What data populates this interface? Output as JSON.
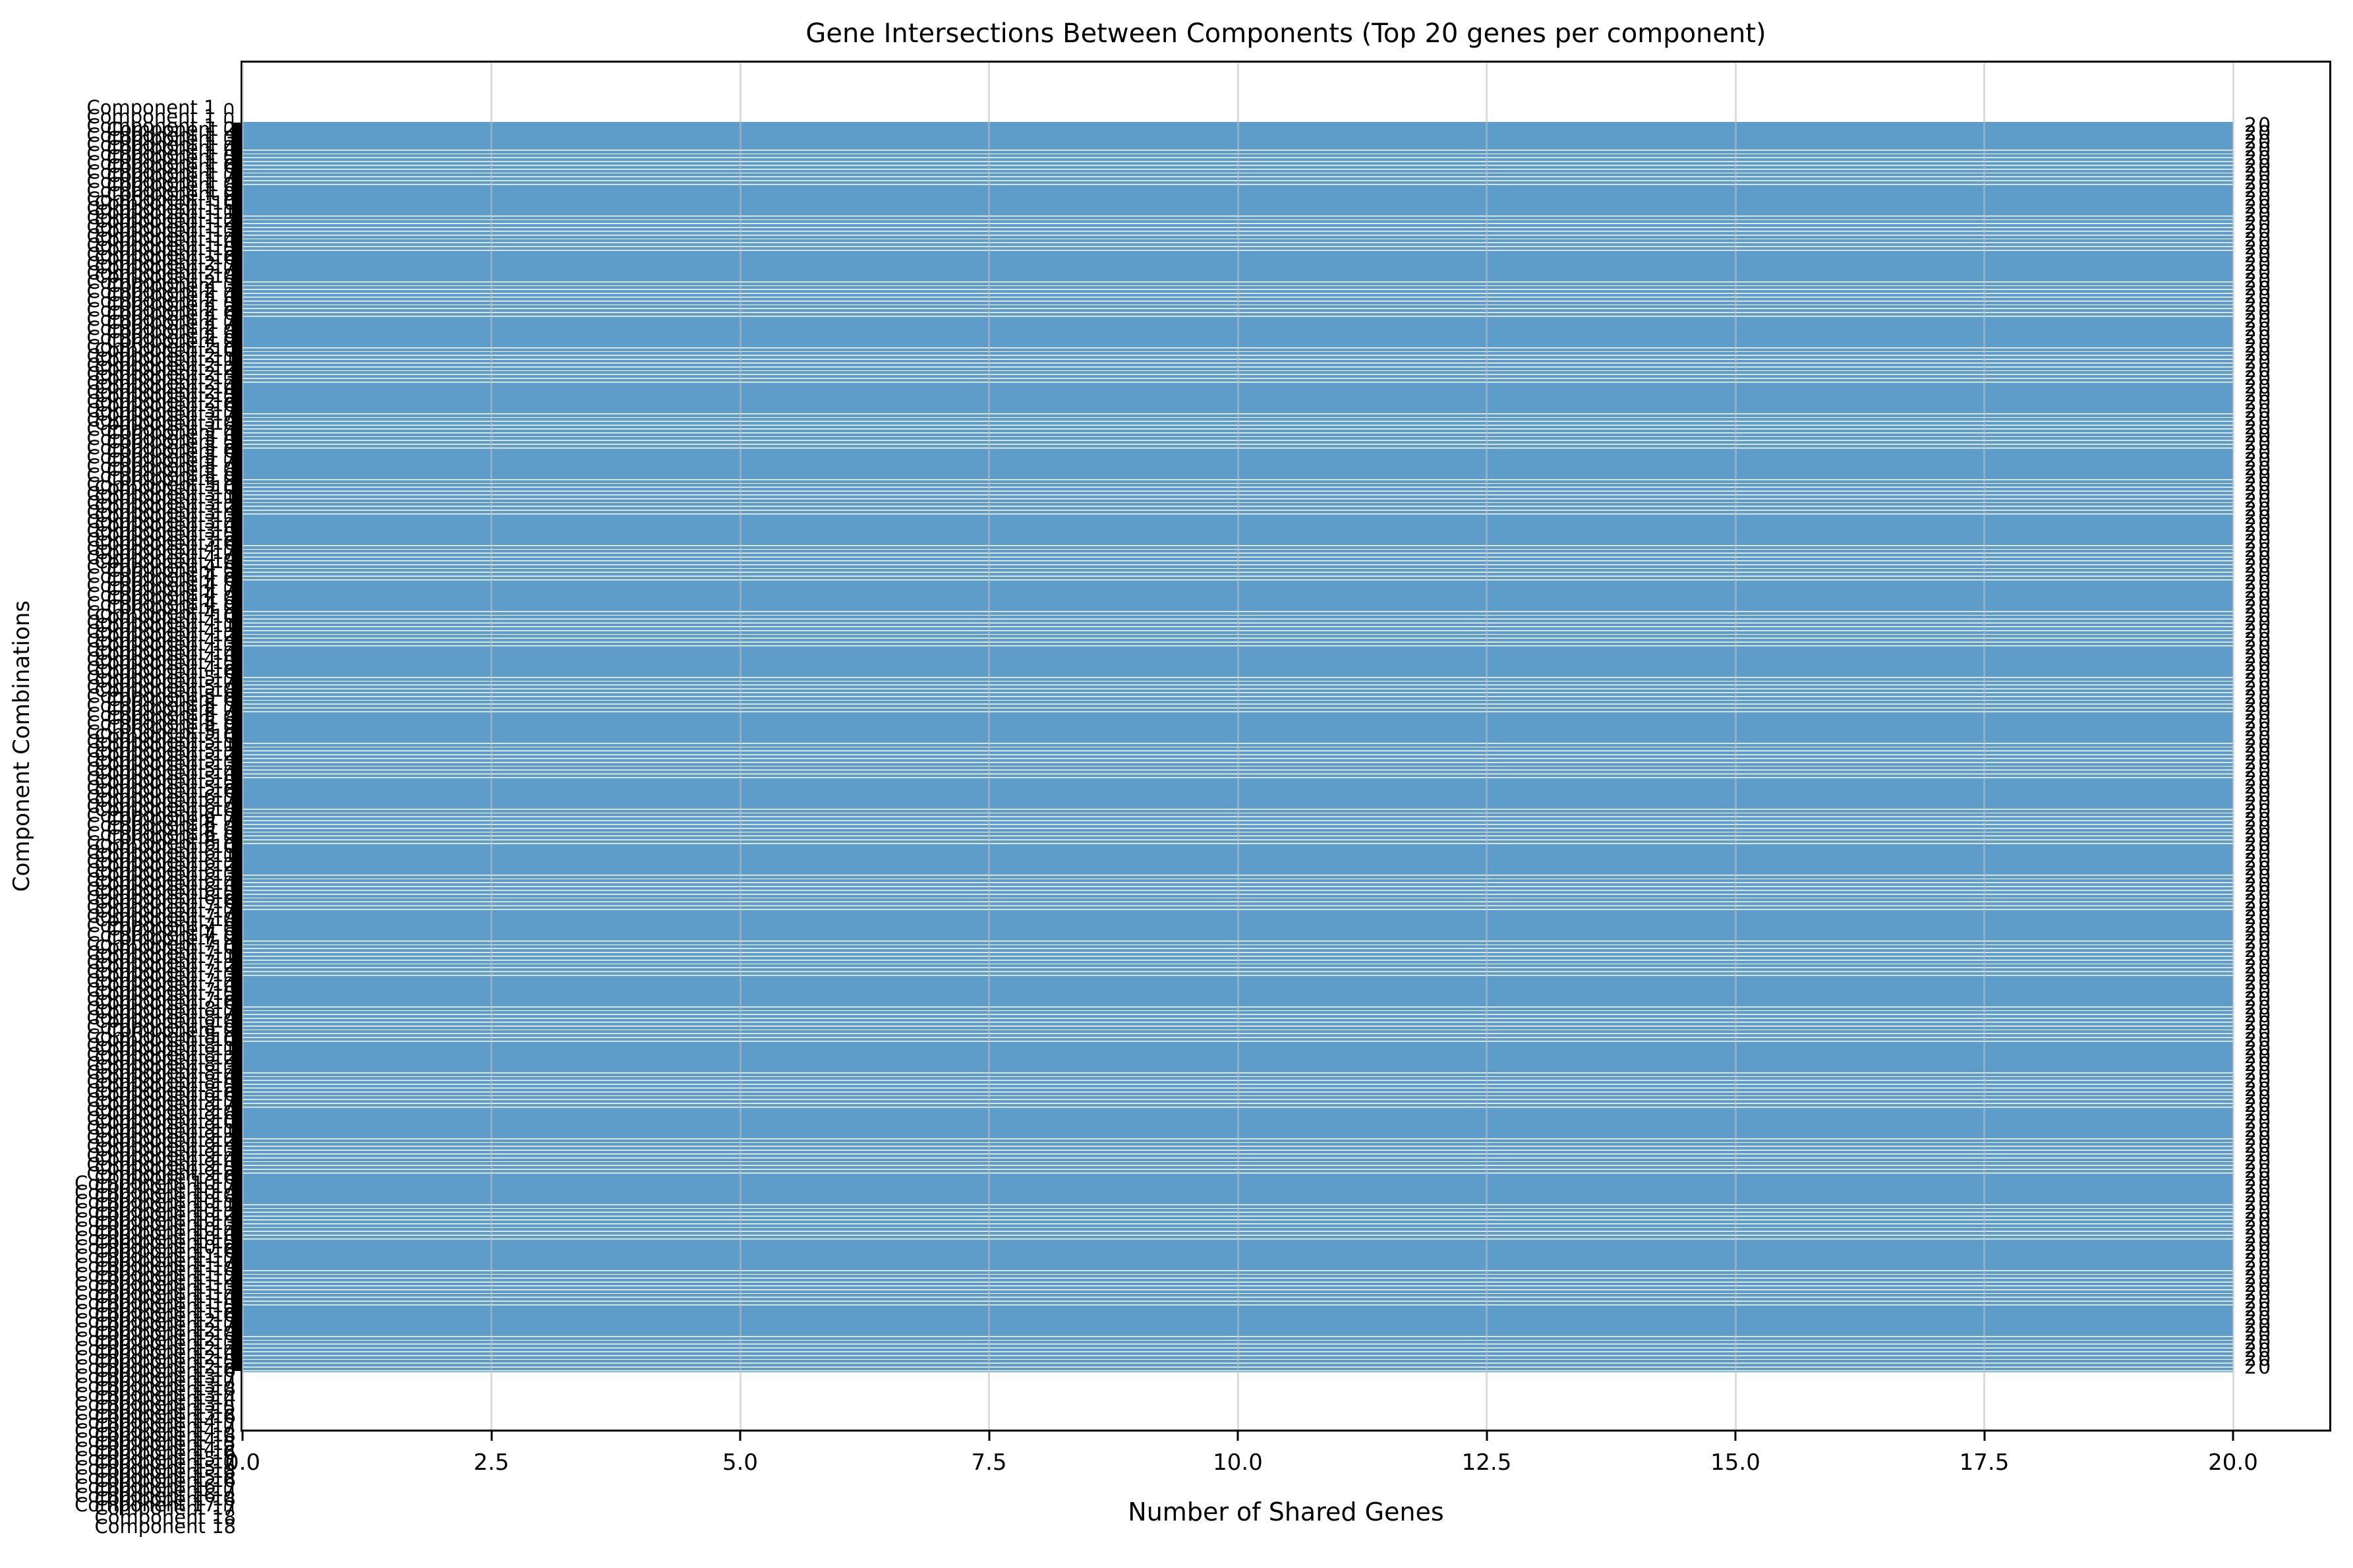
{
  "figure": {
    "background": "#ffffff"
  },
  "chart_data": {
    "type": "bar",
    "orientation": "horizontal",
    "title": "Gene Intersections Between Components (Top 20 genes per component)",
    "xlabel": "Number of Shared Genes",
    "ylabel": "Component Combinations",
    "x_tick_values": [
      0,
      2.5,
      5,
      7.5,
      10,
      12.5,
      15,
      17.5,
      20
    ],
    "x_tick_labels": [
      "0.0",
      "2.5",
      "5.0",
      "7.5",
      "10.0",
      "12.5",
      "15.0",
      "17.5",
      "20.0"
    ],
    "xlim": [
      0,
      21
    ],
    "grid": "vertical",
    "legend": null,
    "components": [
      "Component 1",
      "Component 2",
      "Component 3",
      "Component 4",
      "Component 5",
      "Component 6",
      "Component 7",
      "Component 8",
      "Component 9",
      "Component 10",
      "Component 11",
      "Component 12",
      "Component 13",
      "Component 14",
      "Component 15",
      "Component 16",
      "Component 17",
      "Component 18"
    ],
    "categories_rule": "all 153 unordered pairwise combinations of the 18 components, ordered (1∩2, 1∩3, … 17∩18)",
    "pair_separator": " ∩ ",
    "pair_label_two_lines": true,
    "n_bars": 153,
    "value_per_bar": 20,
    "bar_value_label": "20",
    "visible_label_fragments": {
      "top_left": "Component 1 ∩",
      "bottom_left": "Component 18"
    },
    "colors": {
      "bar": "#5E9DCA",
      "grid": "#bebebe",
      "text": "#000000",
      "spine": "#000000"
    }
  }
}
